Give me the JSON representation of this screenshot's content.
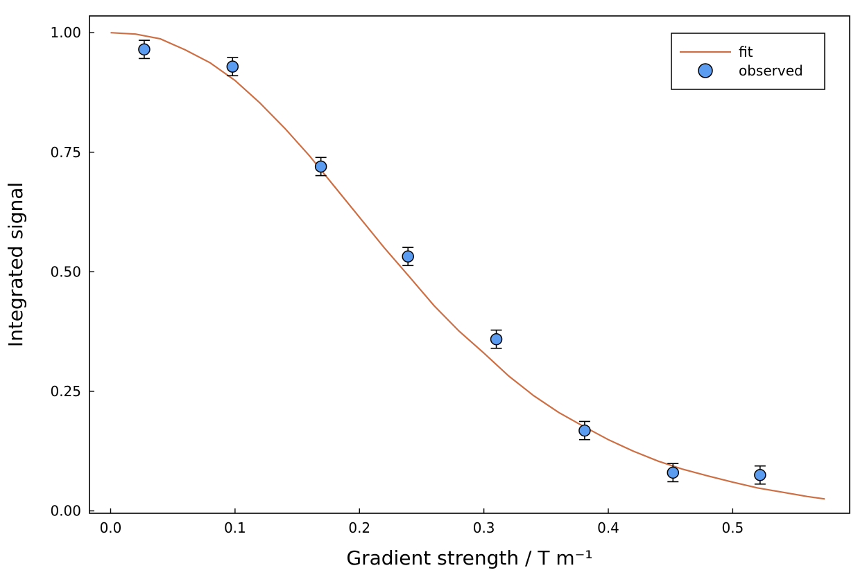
{
  "chart_data": {
    "type": "scatter",
    "title": "",
    "xlabel": "Gradient strength / T m⁻¹",
    "ylabel": "Integrated signal",
    "xlim": [
      -0.017,
      0.594
    ],
    "ylim": [
      -0.005,
      1.035
    ],
    "xticks": [
      0.0,
      0.1,
      0.2,
      0.3,
      0.4,
      0.5
    ],
    "xtick_labels": [
      "0.0",
      "0.1",
      "0.2",
      "0.3",
      "0.4",
      "0.5"
    ],
    "yticks": [
      0.0,
      0.25,
      0.5,
      0.75,
      1.0
    ],
    "ytick_labels": [
      "0.00",
      "0.25",
      "0.50",
      "0.75",
      "1.00"
    ],
    "grid": false,
    "legend_position": "top-right",
    "series": [
      {
        "name": "fit",
        "kind": "line",
        "color": "#cc6f44",
        "x": [
          0.0,
          0.02,
          0.04,
          0.06,
          0.08,
          0.1,
          0.12,
          0.14,
          0.16,
          0.18,
          0.2,
          0.22,
          0.24,
          0.26,
          0.28,
          0.3,
          0.32,
          0.34,
          0.36,
          0.38,
          0.4,
          0.42,
          0.44,
          0.46,
          0.48,
          0.5,
          0.52,
          0.54,
          0.56,
          0.574
        ],
        "y": [
          1.0,
          0.997,
          0.987,
          0.964,
          0.937,
          0.9,
          0.853,
          0.8,
          0.742,
          0.678,
          0.614,
          0.55,
          0.49,
          0.429,
          0.376,
          0.33,
          0.282,
          0.241,
          0.206,
          0.177,
          0.149,
          0.125,
          0.104,
          0.087,
          0.073,
          0.06,
          0.048,
          0.039,
          0.03,
          0.025
        ]
      },
      {
        "name": "observed",
        "kind": "scatter",
        "color": "#5b9bf0",
        "x": [
          0.027,
          0.098,
          0.169,
          0.239,
          0.31,
          0.381,
          0.452,
          0.522
        ],
        "y": [
          0.965,
          0.929,
          0.72,
          0.532,
          0.359,
          0.168,
          0.08,
          0.075
        ],
        "yerr": [
          0.019,
          0.019,
          0.019,
          0.019,
          0.019,
          0.019,
          0.019,
          0.019
        ]
      }
    ]
  }
}
